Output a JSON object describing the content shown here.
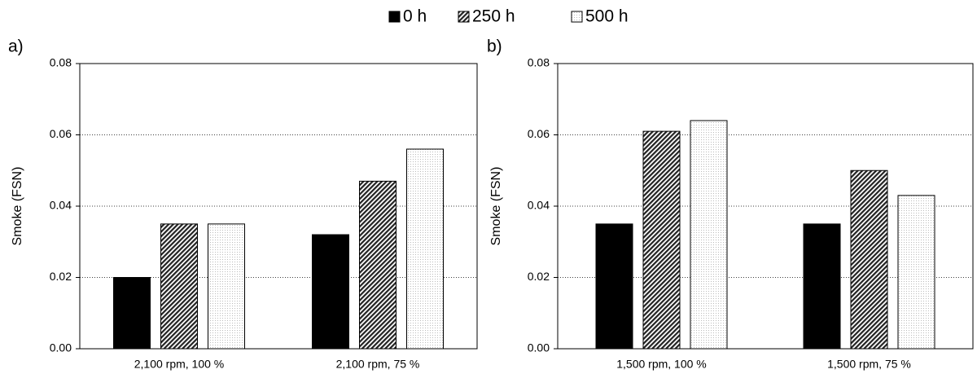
{
  "chart_data": [
    {
      "type": "bar",
      "label": "a)",
      "y_label": "Smoke (FSN)",
      "categories": [
        "2,100 rpm, 100 %",
        "2,100 rpm, 75 %"
      ],
      "series": [
        {
          "name": "0 h",
          "color": "#000000",
          "fill": "solid",
          "values": [
            0.02,
            0.032
          ]
        },
        {
          "name": "250 h",
          "color": "#222222",
          "fill": "hatch",
          "values": [
            0.035,
            0.047
          ]
        },
        {
          "name": "500 h",
          "color": "#bbbbbb",
          "fill": "dots",
          "values": [
            0.035,
            0.056
          ]
        }
      ],
      "ylim": [
        0,
        0.08
      ],
      "yticks": [
        {
          "value": 0,
          "label": "0.00"
        },
        0.02,
        0.04,
        0.06,
        0.08
      ],
      "grid": true
    },
    {
      "type": "bar",
      "label": "b)",
      "y_label": "Smoke (FSN)",
      "categories": [
        "1,500 rpm, 100 %",
        "1,500 rpm, 75 %"
      ],
      "series": [
        {
          "color": "#000000",
          "fill": "solid",
          "values": [
            0.035,
            0.035
          ]
        },
        {
          "color": "#222222",
          "fill": "hatch",
          "values": [
            0.061,
            0.05
          ]
        },
        {
          "color": "#bbbbbb",
          "fill": "dots",
          "values": [
            0.064,
            0.043
          ]
        }
      ],
      "ylim": [
        0,
        0.08
      ],
      "yticks": [
        {
          "value": 0,
          "label": "0.00"
        },
        0.02,
        0.04,
        0.06,
        0.08
      ],
      "grid": true
    }
  ]
}
